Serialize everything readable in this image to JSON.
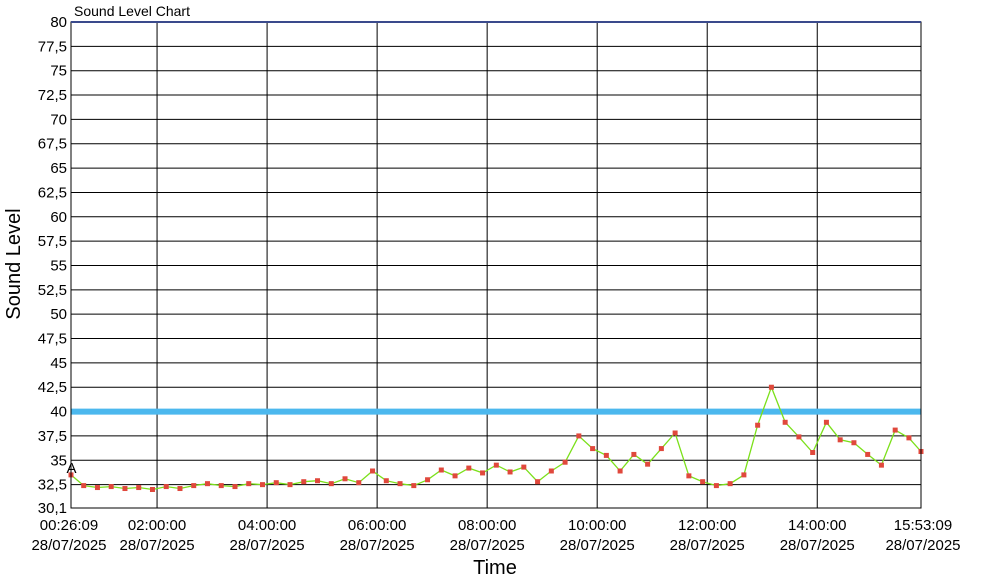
{
  "chart_data": {
    "type": "line",
    "title": "Sound Level Chart",
    "xlabel": "Time",
    "ylabel": "Sound Level",
    "ylim": [
      30.1,
      80
    ],
    "y_ticks": [
      "30,1",
      "32,5",
      "35",
      "37,5",
      "40",
      "42,5",
      "45",
      "47,5",
      "50",
      "52,5",
      "55",
      "57,5",
      "60",
      "62,5",
      "65",
      "67,5",
      "70",
      "72,5",
      "75",
      "77,5",
      "80"
    ],
    "x_ticks": [
      {
        "time": "00:26:09",
        "date": "28/07/2025"
      },
      {
        "time": "02:00:00",
        "date": "28/07/2025"
      },
      {
        "time": "04:00:00",
        "date": "28/07/2025"
      },
      {
        "time": "06:00:00",
        "date": "28/07/2025"
      },
      {
        "time": "08:00:00",
        "date": "28/07/2025"
      },
      {
        "time": "10:00:00",
        "date": "28/07/2025"
      },
      {
        "time": "12:00:00",
        "date": "28/07/2025"
      },
      {
        "time": "14:00:00",
        "date": "28/07/2025"
      },
      {
        "time": "15:53:09",
        "date": "28/07/2025"
      }
    ],
    "xlim": [
      "00:26:09",
      "15:53:09"
    ],
    "threshold": {
      "value": 40,
      "color": "#4cb8ee"
    },
    "annotation": {
      "text": "A",
      "time": "00:30:00",
      "value": 34.2
    },
    "grid": true,
    "series": [
      {
        "color": "#7be01a",
        "marker_color": "#e0483c",
        "times": [
          "00:26:09",
          "00:40:00",
          "00:55:00",
          "01:10:00",
          "01:25:00",
          "01:40:00",
          "01:55:00",
          "02:10:00",
          "02:25:00",
          "02:40:00",
          "02:55:00",
          "03:10:00",
          "03:25:00",
          "03:40:00",
          "03:55:00",
          "04:10:00",
          "04:25:00",
          "04:40:00",
          "04:55:00",
          "05:10:00",
          "05:25:00",
          "05:40:00",
          "05:55:00",
          "06:10:00",
          "06:25:00",
          "06:40:00",
          "06:55:00",
          "07:10:00",
          "07:25:00",
          "07:40:00",
          "07:55:00",
          "08:10:00",
          "08:25:00",
          "08:40:00",
          "08:55:00",
          "09:10:00",
          "09:25:00",
          "09:40:00",
          "09:55:00",
          "10:10:00",
          "10:25:00",
          "10:40:00",
          "10:55:00",
          "11:10:00",
          "11:25:00",
          "11:40:00",
          "11:55:00",
          "12:10:00",
          "12:25:00",
          "12:40:00",
          "12:55:00",
          "13:10:00",
          "13:25:00",
          "13:40:00",
          "13:55:00",
          "14:10:00",
          "14:25:00",
          "14:40:00",
          "14:55:00",
          "15:10:00",
          "15:25:00",
          "15:40:00",
          "15:53:09"
        ],
        "values": [
          33.5,
          32.4,
          32.2,
          32.3,
          32.1,
          32.2,
          32.0,
          32.3,
          32.1,
          32.4,
          32.6,
          32.4,
          32.3,
          32.6,
          32.5,
          32.7,
          32.5,
          32.8,
          32.9,
          32.6,
          33.1,
          32.7,
          33.9,
          32.9,
          32.6,
          32.4,
          33.0,
          34.0,
          33.4,
          34.2,
          33.7,
          34.5,
          33.8,
          34.3,
          32.8,
          33.9,
          34.8,
          37.5,
          36.2,
          35.5,
          33.9,
          35.6,
          34.6,
          36.2,
          37.8,
          33.4,
          32.8,
          32.4,
          32.6,
          33.5,
          38.6,
          42.5,
          38.9,
          37.4,
          35.8,
          38.9,
          37.1,
          36.8,
          35.6,
          34.5,
          38.1,
          37.3,
          35.9
        ]
      }
    ]
  }
}
